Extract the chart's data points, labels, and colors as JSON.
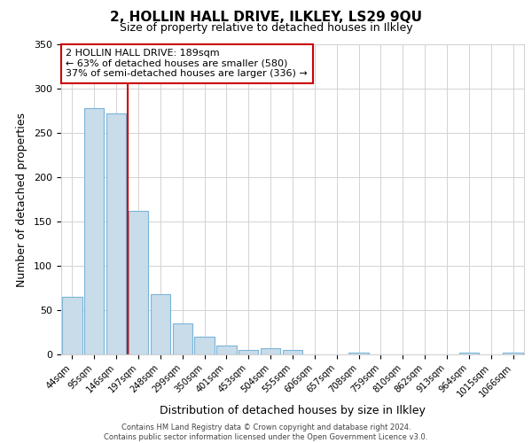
{
  "title_line1": "2, HOLLIN HALL DRIVE, ILKLEY, LS29 9QU",
  "title_line2": "Size of property relative to detached houses in Ilkley",
  "xlabel": "Distribution of detached houses by size in Ilkley",
  "ylabel": "Number of detached properties",
  "bar_labels": [
    "44sqm",
    "95sqm",
    "146sqm",
    "197sqm",
    "248sqm",
    "299sqm",
    "350sqm",
    "401sqm",
    "453sqm",
    "504sqm",
    "555sqm",
    "606sqm",
    "657sqm",
    "708sqm",
    "759sqm",
    "810sqm",
    "862sqm",
    "913sqm",
    "964sqm",
    "1015sqm",
    "1066sqm"
  ],
  "bar_values": [
    65,
    278,
    272,
    162,
    68,
    35,
    20,
    10,
    5,
    7,
    5,
    0,
    0,
    2,
    0,
    0,
    0,
    0,
    2,
    0,
    2
  ],
  "bar_color": "#c9dcea",
  "bar_edge_color": "#7ab5d8",
  "vline_position": 2.5,
  "vline_color": "#cc0000",
  "annotation_title": "2 HOLLIN HALL DRIVE: 189sqm",
  "annotation_line1": "← 63% of detached houses are smaller (580)",
  "annotation_line2": "37% of semi-detached houses are larger (336) →",
  "annotation_box_color": "#ffffff",
  "annotation_box_edge": "#cc0000",
  "ylim": [
    0,
    350
  ],
  "yticks": [
    0,
    50,
    100,
    150,
    200,
    250,
    300,
    350
  ],
  "footer_line1": "Contains HM Land Registry data © Crown copyright and database right 2024.",
  "footer_line2": "Contains public sector information licensed under the Open Government Licence v3.0.",
  "background_color": "#ffffff",
  "grid_color": "#d3d3d3",
  "title_fontsize": 11,
  "subtitle_fontsize": 9
}
